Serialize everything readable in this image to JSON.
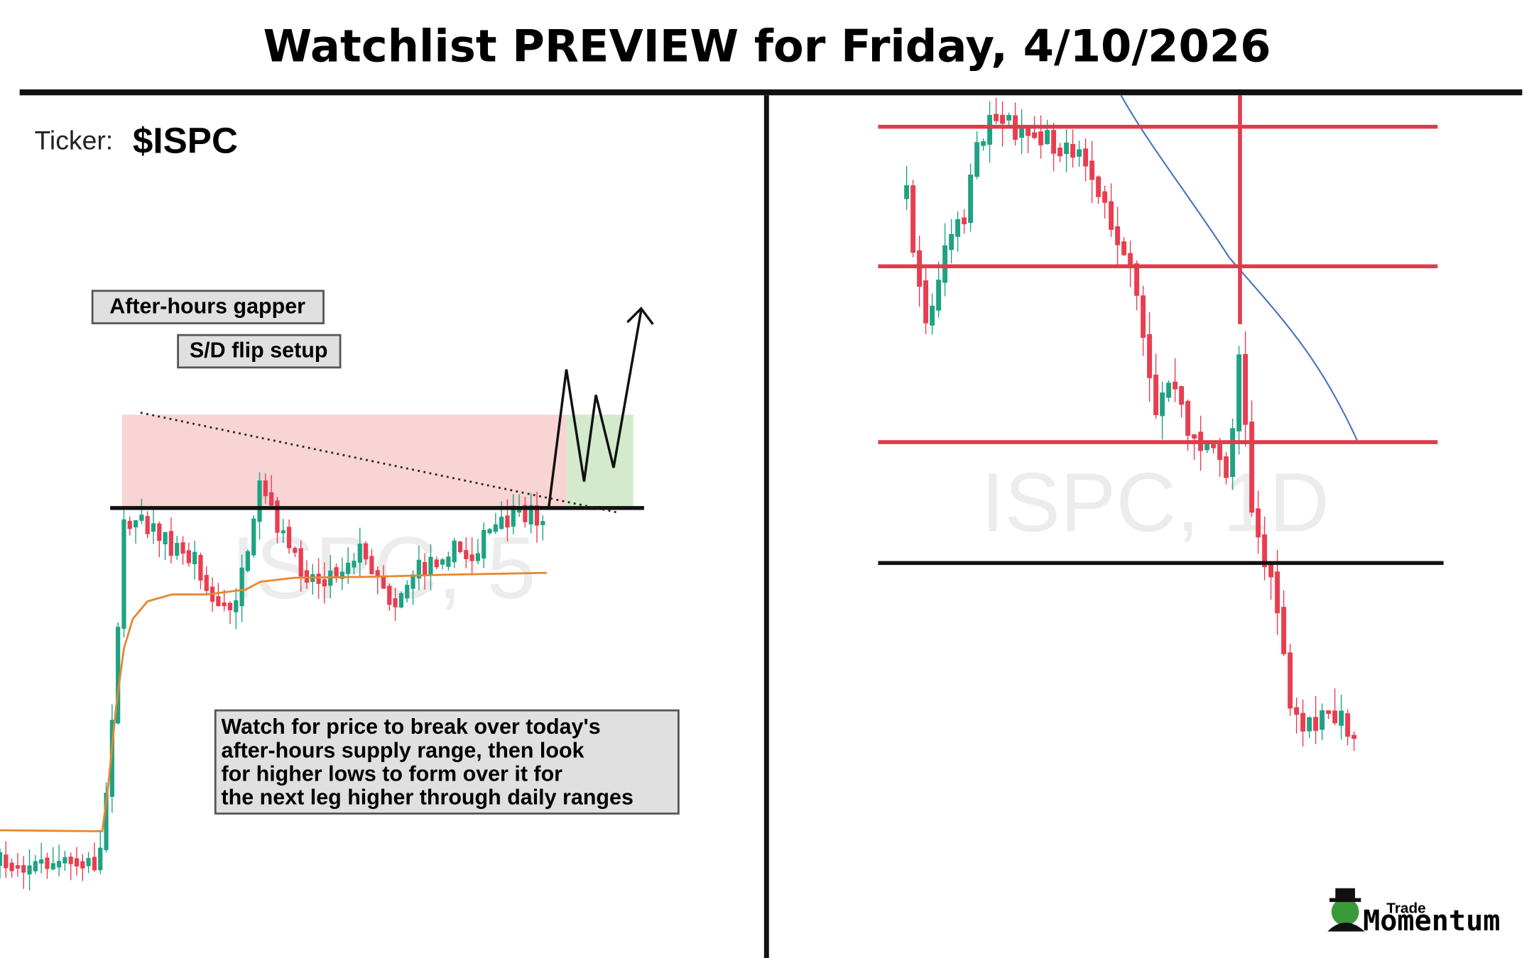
{
  "header": {
    "title": "Watchlist PREVIEW for Friday, 4/10/2026"
  },
  "left_panel": {
    "ticker_label": "Ticker:",
    "ticker": "$ISPC",
    "tags": [
      "After-hours gapper",
      "S/D flip setup"
    ],
    "watermark": "ISPC, 5",
    "note": [
      "Watch for price to break over today's",
      "after-hours supply range, then look",
      "for higher lows to form over it for",
      "the next leg higher through daily ranges"
    ]
  },
  "right_panel": {
    "watermark": "ISPC, 1D"
  },
  "logo": {
    "top": "Trade",
    "bottom": "Momentum"
  }
}
